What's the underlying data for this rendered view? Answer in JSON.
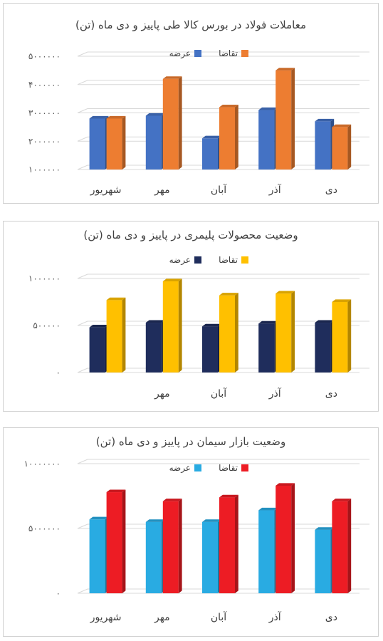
{
  "chart_data": [
    {
      "type": "bar",
      "title": "معاملات فولاد در بورس کالا طی پاییز و دی ماه (تن)",
      "categories": [
        "شهریور",
        "مهر",
        "آبان",
        "آذر",
        "دی"
      ],
      "tick_labels": [
        "۱۰۰۰۰۰۰",
        "۲۰۰۰۰۰۰",
        "۳۰۰۰۰۰۰",
        "۴۰۰۰۰۰۰",
        "۵۰۰۰۰۰۰"
      ],
      "tick_values": [
        1000000,
        2000000,
        3000000,
        4000000,
        5000000
      ],
      "ylim": [
        1000000,
        5000000
      ],
      "series": [
        {
          "name": "عرضه",
          "color": "#4472C4",
          "values": [
            2800000,
            2900000,
            2100000,
            3100000,
            2700000
          ]
        },
        {
          "name": "تقاضا",
          "color": "#ED7D31",
          "values": [
            2800000,
            4200000,
            3200000,
            4500000,
            2500000
          ]
        }
      ],
      "legend": "top-center",
      "grid": true
    },
    {
      "type": "bar",
      "title": "وضعیت محصولات پلیمری در پاییز و دی ماه (تن)",
      "categories": [
        "",
        "مهر",
        "آبان",
        "آذر",
        "دی"
      ],
      "tick_labels": [
        "۰",
        "۵۰۰۰۰۰",
        "۱۰۰۰۰۰۰"
      ],
      "tick_values": [
        0,
        500000,
        1000000
      ],
      "ylim": [
        0,
        1000000
      ],
      "series": [
        {
          "name": "عرضه",
          "color": "#1F2D5C",
          "values": [
            480000,
            530000,
            490000,
            520000,
            530000
          ]
        },
        {
          "name": "تقاضا",
          "color": "#FFC000",
          "values": [
            770000,
            970000,
            820000,
            840000,
            750000
          ]
        }
      ],
      "legend": "top-center",
      "grid": true
    },
    {
      "type": "bar",
      "title": "وضعیت بازار سیمان در پاییز و دی ماه (تن)",
      "categories": [
        "شهریور",
        "مهر",
        "آبان",
        "آذر",
        "دی"
      ],
      "tick_labels": [
        "۰",
        "۵۰۰۰۰۰۰",
        "۱۰۰۰۰۰۰۰"
      ],
      "tick_values": [
        0,
        5000000,
        10000000
      ],
      "ylim": [
        0,
        10000000
      ],
      "series": [
        {
          "name": "عرضه",
          "color": "#29ABE2",
          "values": [
            5700000,
            5500000,
            5500000,
            6400000,
            4900000
          ]
        },
        {
          "name": "تقاضا",
          "color": "#ED1C24",
          "values": [
            7800000,
            7100000,
            7400000,
            8300000,
            7100000
          ]
        }
      ],
      "legend": "top-center",
      "grid": true
    }
  ]
}
